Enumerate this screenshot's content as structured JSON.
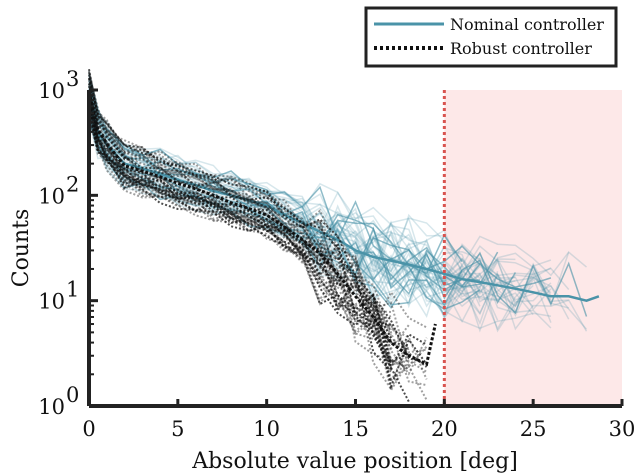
{
  "chart_data": {
    "type": "line",
    "xlabel": "Absolute value position [deg]",
    "ylabel": "Counts",
    "xlim": [
      0,
      30
    ],
    "ylim": [
      1,
      1000
    ],
    "yscale": "log",
    "x_ticks": [
      0,
      5,
      10,
      15,
      20,
      25,
      30
    ],
    "y_ticks": [
      {
        "value": 1,
        "base": "10",
        "exp": "0"
      },
      {
        "value": 10,
        "base": "10",
        "exp": "1"
      },
      {
        "value": 100,
        "base": "10",
        "exp": "2"
      },
      {
        "value": 1000,
        "base": "10",
        "exp": "3"
      }
    ],
    "legend_position": "top-right-outside",
    "grid": false,
    "threshold": {
      "x": 20,
      "color": "#d9534f"
    },
    "shaded_region": {
      "x_from": 20,
      "x_to": 30,
      "color": "#fde8e8"
    },
    "series": [
      {
        "name": "Nominal controller",
        "style": "solid",
        "color": "#4a93a8",
        "x": [
          0,
          0.5,
          1,
          2,
          3,
          4,
          5,
          6,
          7,
          8,
          9,
          10,
          11,
          12,
          13,
          14,
          15,
          16,
          17,
          18,
          19,
          20,
          21,
          22,
          23,
          24,
          25,
          26,
          27,
          28,
          28.7
        ],
        "values": [
          900,
          400,
          300,
          200,
          180,
          160,
          140,
          125,
          110,
          100,
          90,
          80,
          65,
          55,
          45,
          38,
          30,
          26,
          24,
          22,
          20,
          18,
          16,
          15,
          14,
          13,
          12,
          11,
          11,
          10,
          11
        ]
      },
      {
        "name": "Robust controller",
        "style": "dotted",
        "color": "#111111",
        "x": [
          0,
          0.5,
          1,
          2,
          3,
          4,
          5,
          6,
          7,
          8,
          9,
          10,
          11,
          12,
          13,
          14,
          15,
          16,
          17,
          18,
          19,
          19.5
        ],
        "values": [
          950,
          420,
          310,
          190,
          170,
          150,
          130,
          115,
          100,
          85,
          75,
          65,
          50,
          38,
          28,
          18,
          11,
          7,
          4,
          3,
          2.5,
          6
        ]
      }
    ]
  }
}
